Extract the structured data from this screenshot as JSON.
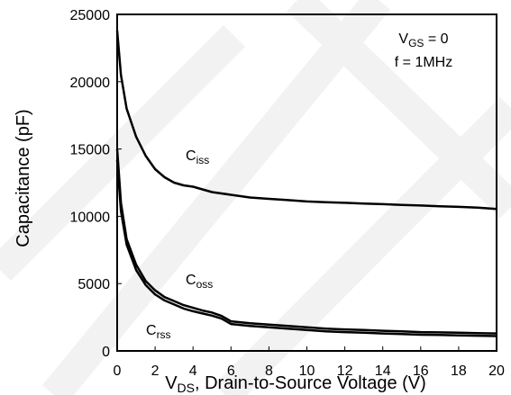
{
  "chart_data": {
    "type": "line",
    "xlabel": {
      "main": "V",
      "sub": "DS",
      "rest": ", Drain-to-Source Voltage (V)"
    },
    "ylabel": "Capacitance (pF)",
    "xlim": [
      0,
      20
    ],
    "ylim": [
      0,
      25000
    ],
    "xticks": [
      "0",
      "2",
      "4",
      "6",
      "8",
      "10",
      "12",
      "14",
      "16",
      "18",
      "20"
    ],
    "yticks": [
      "0",
      "5000",
      "10000",
      "15000",
      "20000",
      "25000"
    ],
    "grid": false,
    "legend": "none",
    "annotations": [
      {
        "main": "V",
        "sub": "GS",
        "rest": " = 0"
      },
      {
        "main": "f = 1MHz",
        "sub": "",
        "rest": ""
      }
    ],
    "series": [
      {
        "name": {
          "main": "C",
          "sub": "iss"
        },
        "x": [
          0,
          0.2,
          0.5,
          1,
          1.5,
          2,
          2.5,
          3,
          3.5,
          4,
          4.5,
          5,
          6,
          7,
          8,
          9,
          10,
          11,
          12,
          13,
          14,
          15,
          16,
          17,
          18,
          19,
          20
        ],
        "y": [
          23800,
          20500,
          18000,
          15900,
          14500,
          13500,
          12900,
          12500,
          12300,
          12200,
          12000,
          11800,
          11600,
          11400,
          11300,
          11200,
          11100,
          11050,
          11000,
          10950,
          10900,
          10850,
          10800,
          10750,
          10700,
          10650,
          10550
        ]
      },
      {
        "name": {
          "main": "C",
          "sub": "oss"
        },
        "x": [
          0,
          0.2,
          0.5,
          1,
          1.5,
          2,
          2.5,
          3,
          3.5,
          4,
          4.5,
          5,
          5.5,
          6,
          7,
          8,
          9,
          10,
          11,
          12,
          13,
          14,
          15,
          16,
          17,
          18,
          19,
          20
        ],
        "y": [
          15000,
          11000,
          8300,
          6400,
          5200,
          4500,
          4000,
          3700,
          3400,
          3200,
          3000,
          2850,
          2600,
          2200,
          2050,
          1950,
          1850,
          1750,
          1650,
          1600,
          1550,
          1500,
          1450,
          1400,
          1380,
          1350,
          1320,
          1300
        ]
      },
      {
        "name": {
          "main": "C",
          "sub": "rss"
        },
        "x": [
          0,
          0.2,
          0.5,
          1,
          1.5,
          2,
          2.5,
          3,
          3.5,
          4,
          4.5,
          5,
          5.5,
          6,
          7,
          8,
          9,
          10,
          11,
          12,
          13,
          14,
          15,
          16,
          17,
          18,
          19,
          20
        ],
        "y": [
          14200,
          10400,
          7900,
          6000,
          4900,
          4200,
          3750,
          3450,
          3150,
          2950,
          2780,
          2620,
          2400,
          2000,
          1850,
          1750,
          1650,
          1550,
          1450,
          1400,
          1350,
          1300,
          1250,
          1200,
          1180,
          1150,
          1130,
          1100
        ]
      }
    ]
  }
}
